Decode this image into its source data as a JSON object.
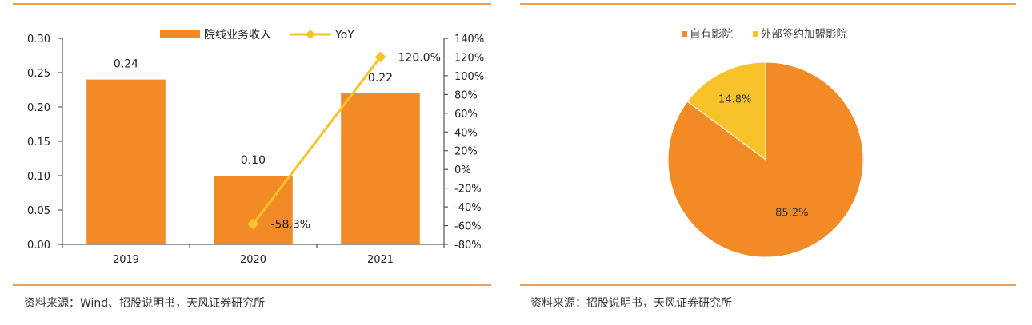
{
  "left_panel": {
    "source": "资料来源：Wind、招股说明书，天风证券研究所"
  },
  "right_panel": {
    "source": "资料来源：招股说明书，天风证券研究所"
  },
  "colors": {
    "bar": "#f28a26",
    "line": "#f8c32a",
    "pie_main": "#f28a26",
    "pie_minor": "#f8c32a",
    "rule": "#f0a050"
  },
  "chart_data": [
    {
      "type": "bar",
      "categories": [
        "2019",
        "2020",
        "2021"
      ],
      "series": [
        {
          "name": "院线业务收入",
          "type": "bar",
          "axis": "left",
          "values": [
            0.24,
            0.1,
            0.22
          ],
          "labels": [
            "0.24",
            "0.10",
            "0.22"
          ]
        },
        {
          "name": "YoY",
          "type": "line",
          "axis": "right",
          "values": [
            null,
            -58.3,
            120.0
          ],
          "labels": [
            "",
            "-58.3%",
            "120.0%"
          ]
        }
      ],
      "ylim": [
        0,
        0.3
      ],
      "yticks": [
        "0.00",
        "0.05",
        "0.10",
        "0.15",
        "0.20",
        "0.25",
        "0.30"
      ],
      "y2lim": [
        -80,
        140
      ],
      "y2ticks": [
        "-80%",
        "-60%",
        "-40%",
        "-20%",
        "0%",
        "20%",
        "40%",
        "60%",
        "80%",
        "100%",
        "120%",
        "140%"
      ],
      "legend": "top",
      "grid": false
    },
    {
      "type": "pie",
      "labels": [
        "自有影院",
        "外部签约加盟影院"
      ],
      "values": [
        85.2,
        14.8
      ],
      "value_labels": [
        "85.2%",
        "14.8%"
      ],
      "legend": "top"
    }
  ]
}
